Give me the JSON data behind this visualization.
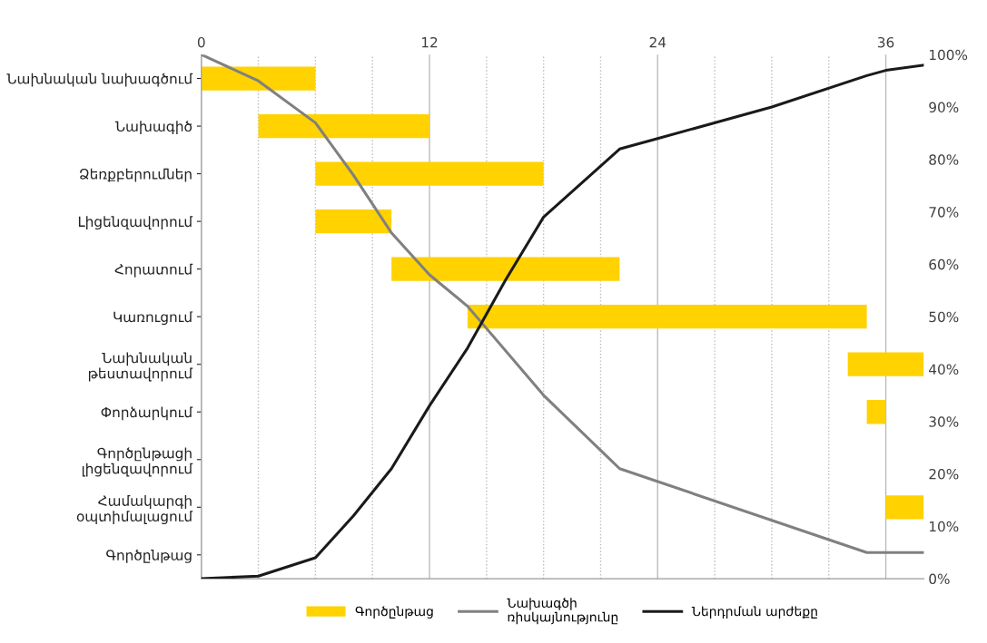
{
  "chart_data": [
    {
      "type": "bar",
      "orientation": "horizontal",
      "categories": [
        "Նախնական նախագծում",
        "Նախագիծ",
        "Ձեռքբերումներ",
        "Լիցենզավորում",
        "Հորատում",
        "Կառուցում",
        "Նախնական\nթեստավորում",
        "Փորձարկում",
        "Գործընթացի\nլիցենզավորում",
        "Համակարգի\nօպտիմալացում",
        "Գործընթաց"
      ],
      "series": [
        {
          "name": "Գործընթաց",
          "color": "#ffd200",
          "base": [
            0,
            3,
            6,
            6,
            10,
            14,
            34,
            35,
            null,
            36,
            null
          ],
          "values": [
            6,
            9,
            12,
            4,
            12,
            21,
            4,
            1,
            null,
            2,
            null
          ]
        }
      ],
      "xlim": [
        0,
        38
      ],
      "xticks": [
        0,
        {
          "value": 3,
          "label": null
        },
        {
          "value": 6,
          "label": null
        },
        {
          "value": 9,
          "label": null
        },
        12,
        {
          "value": 15,
          "label": null
        },
        {
          "value": 18,
          "label": null
        },
        {
          "value": 21,
          "label": null
        },
        24,
        {
          "value": 27,
          "label": null
        },
        {
          "value": 30,
          "label": null
        },
        {
          "value": 33,
          "label": null
        },
        36
      ],
      "grid": "x",
      "legend": "bottom"
    },
    {
      "type": "line",
      "series": [
        {
          "name": "Նախագծի\nռիսկայնությունը",
          "color": "#808080",
          "x": [
            0,
            3,
            6,
            8,
            10,
            12,
            14,
            18,
            22,
            35,
            38
          ],
          "values": [
            100,
            95,
            87,
            77,
            66,
            58,
            52,
            35,
            21,
            5,
            5
          ]
        },
        {
          "name": "Ներդրման արժեքը",
          "color": "#1a1a1a",
          "x": [
            0,
            3,
            6,
            8,
            10,
            12,
            14,
            16,
            18,
            22,
            24,
            30,
            35,
            36,
            38
          ],
          "values": [
            0,
            0.5,
            4,
            12,
            21,
            33,
            44,
            57,
            69,
            82,
            84,
            90,
            96,
            97,
            98
          ]
        }
      ],
      "xlim": [
        0,
        38
      ],
      "ylim": [
        0,
        100
      ],
      "yticks": [
        {
          "value": 0,
          "label": "0%"
        },
        {
          "value": 10,
          "label": "10%"
        },
        {
          "value": 20,
          "label": "20%"
        },
        {
          "value": 30,
          "label": "30%"
        },
        {
          "value": 40,
          "label": "40%"
        },
        {
          "value": 50,
          "label": "50%"
        },
        {
          "value": 60,
          "label": "60%"
        },
        {
          "value": 70,
          "label": "70%"
        },
        {
          "value": 80,
          "label": "80%"
        },
        {
          "value": 90,
          "label": "90%"
        },
        {
          "value": 100,
          "label": "100%"
        }
      ],
      "tick_labels": "y",
      "legend": "bottom"
    }
  ]
}
